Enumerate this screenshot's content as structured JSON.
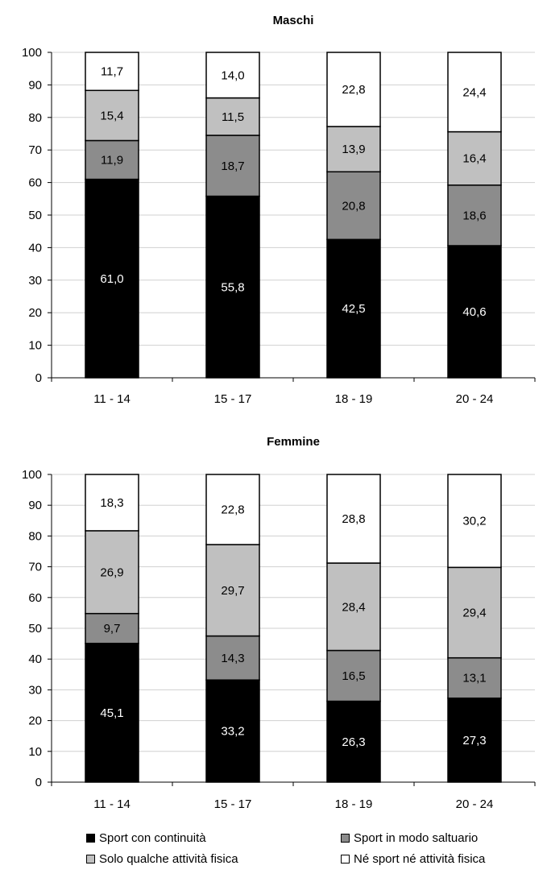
{
  "colors": {
    "Sport con continuità": "#000000",
    "Sport in modo saltuario": "#8c8c8c",
    "Solo qualche attività fisica": "#c0c0c0",
    "Né sport né attività fisica": "#ffffff"
  },
  "legend": {
    "items": [
      {
        "label": "Sport con continuità",
        "color": "#000000"
      },
      {
        "label": "Sport in modo saltuario",
        "color": "#8c8c8c"
      },
      {
        "label": "Solo qualche attività fisica",
        "color": "#c0c0c0"
      },
      {
        "label": "Né sport né attività fisica",
        "color": "#ffffff"
      }
    ]
  },
  "chart_data": [
    {
      "type": "bar",
      "stacked": true,
      "title": "Maschi",
      "categories": [
        "11 - 14",
        "15 - 17",
        "18 - 19",
        "20 - 24"
      ],
      "ylim": [
        0,
        100
      ],
      "yticks": [
        0,
        10,
        20,
        30,
        40,
        50,
        60,
        70,
        80,
        90,
        100
      ],
      "grid": true,
      "legend": "bottom",
      "series": [
        {
          "name": "Sport con continuità",
          "values": [
            61.0,
            55.8,
            42.5,
            40.6
          ],
          "labels": [
            "61,0",
            "55,8",
            "42,5",
            "40,6"
          ]
        },
        {
          "name": "Sport in modo saltuario",
          "values": [
            11.9,
            18.7,
            20.8,
            18.6
          ],
          "labels": [
            "11,9",
            "18,7",
            "20,8",
            "18,6"
          ]
        },
        {
          "name": "Solo qualche attività fisica",
          "values": [
            15.4,
            11.5,
            13.9,
            16.4
          ],
          "labels": [
            "15,4",
            "11,5",
            "13,9",
            "16,4"
          ]
        },
        {
          "name": "Né sport né attività fisica",
          "values": [
            11.7,
            14.0,
            22.8,
            24.4
          ],
          "labels": [
            "11,7",
            "14,0",
            "22,8",
            "24,4"
          ]
        }
      ]
    },
    {
      "type": "bar",
      "stacked": true,
      "title": "Femmine",
      "categories": [
        "11 - 14",
        "15 - 17",
        "18 - 19",
        "20 - 24"
      ],
      "ylim": [
        0,
        100
      ],
      "yticks": [
        0,
        10,
        20,
        30,
        40,
        50,
        60,
        70,
        80,
        90,
        100
      ],
      "grid": true,
      "legend": "bottom",
      "series": [
        {
          "name": "Sport con continuità",
          "values": [
            45.1,
            33.2,
            26.3,
            27.3
          ],
          "labels": [
            "45,1",
            "33,2",
            "26,3",
            "27,3"
          ]
        },
        {
          "name": "Sport in modo saltuario",
          "values": [
            9.7,
            14.3,
            16.5,
            13.1
          ],
          "labels": [
            "9,7",
            "14,3",
            "16,5",
            "13,1"
          ]
        },
        {
          "name": "Solo qualche attività fisica",
          "values": [
            26.9,
            29.7,
            28.4,
            29.4
          ],
          "labels": [
            "26,9",
            "29,7",
            "28,4",
            "29,4"
          ]
        },
        {
          "name": "Né sport né attività fisica",
          "values": [
            18.3,
            22.8,
            28.8,
            30.2
          ],
          "labels": [
            "18,3",
            "22,8",
            "28,8",
            "30,2"
          ]
        }
      ]
    }
  ]
}
